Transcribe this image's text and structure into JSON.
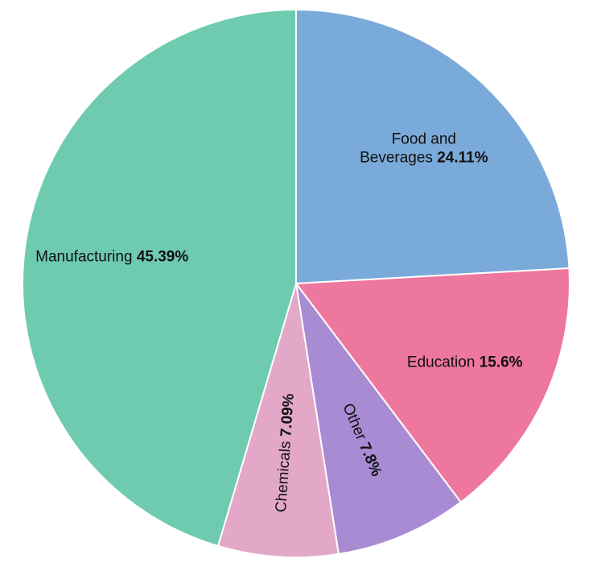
{
  "chart_data": {
    "type": "pie",
    "title": "",
    "start": "12 o'clock",
    "direction": "clockwise",
    "legend": "none",
    "slices": [
      {
        "label_lines": [
          "Food and",
          "Beverages"
        ],
        "value": 24.11,
        "value_text": "24.11%",
        "color": "#7aaad9",
        "label_rotate": false
      },
      {
        "label_lines": [
          "Education"
        ],
        "value": 15.6,
        "value_text": "15.6%",
        "color": "#ee779d",
        "label_rotate": false
      },
      {
        "label_lines": [
          "Other"
        ],
        "value": 7.8,
        "value_text": "7.8%",
        "color": "#a98bd4",
        "label_rotate": true
      },
      {
        "label_lines": [
          "Chemicals"
        ],
        "value": 7.09,
        "value_text": "7.09%",
        "color": "#e3a8c8",
        "label_rotate": true
      },
      {
        "label_lines": [
          "Manufacturing"
        ],
        "value": 45.39,
        "value_text": "45.39%",
        "color": "#6ecbb0",
        "label_rotate": false
      }
    ]
  }
}
